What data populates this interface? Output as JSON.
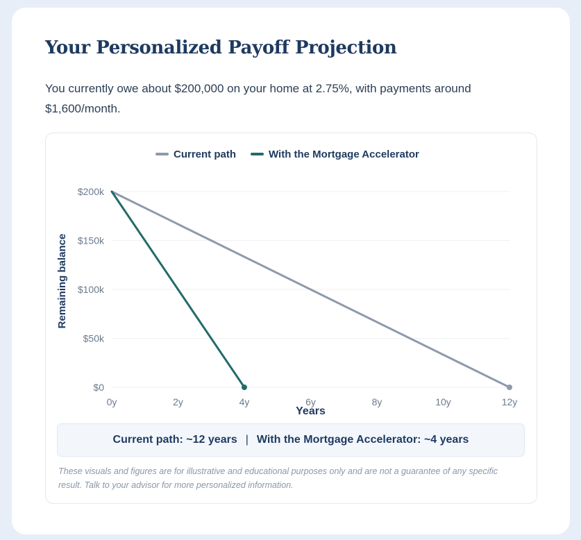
{
  "header": {
    "title": "Your Personalized Payoff Projection",
    "intro": "You currently owe about $200,000 on your home at 2.75%, with payments around $1,600/month."
  },
  "chart_data": {
    "type": "line",
    "xlabel": "Years",
    "ylabel": "Remaining balance",
    "xlim": [
      0,
      12
    ],
    "ylim": [
      0,
      200000
    ],
    "x_ticks": [
      0,
      2,
      4,
      6,
      8,
      10,
      12
    ],
    "x_tick_labels": [
      "0y",
      "2y",
      "4y",
      "6y",
      "8y",
      "10y",
      "12y"
    ],
    "y_ticks": [
      0,
      50000,
      100000,
      150000,
      200000
    ],
    "y_tick_labels": [
      "$0",
      "$50k",
      "$100k",
      "$150k",
      "$200k"
    ],
    "grid": "horizontal",
    "legend": "top-center",
    "series": [
      {
        "name": "Current path",
        "color": "#8e9aab",
        "points": [
          [
            0,
            200000
          ],
          [
            12,
            0
          ]
        ]
      },
      {
        "name": "With the Mortgage Accelerator",
        "color": "#226b6b",
        "points": [
          [
            0,
            200000
          ],
          [
            4,
            0
          ]
        ]
      }
    ]
  },
  "summary": {
    "current": "Current path: ~12 years",
    "separator": "|",
    "accelerator": "With the Mortgage Accelerator: ~4 years"
  },
  "disclaimer": "These visuals and figures are for illustrative and educational purposes only and are not a guarantee of any specific result. Talk to your advisor for more personalized information."
}
